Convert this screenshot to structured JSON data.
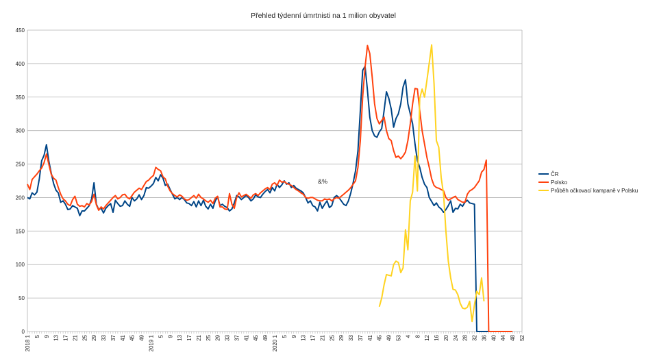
{
  "chart_data": {
    "type": "line",
    "title": "Přehled týdenní úmrtnisti na 1 milion obyvatel",
    "xlabel": "",
    "ylabel": "",
    "ylim": [
      0,
      450
    ],
    "yticks": [
      0,
      50,
      100,
      150,
      200,
      250,
      300,
      350,
      400,
      450
    ],
    "grid": true,
    "legend_position": "right",
    "annotation": "&%",
    "x_tick_labels": [
      "2018 1",
      "5",
      "9",
      "13",
      "17",
      "21",
      "25",
      "29",
      "33",
      "37",
      "41",
      "45",
      "49",
      "2019 1",
      "5",
      "9",
      "13",
      "17",
      "21",
      "25",
      "29",
      "33",
      "37",
      "41",
      "45",
      "49",
      "2020 1",
      "5",
      "9",
      "13",
      "17",
      "21",
      "25",
      "29",
      "33",
      "37",
      "41",
      "45",
      "49",
      "53",
      "4",
      "8",
      "12",
      "16",
      "20",
      "24",
      "28",
      "32",
      "36",
      "40",
      "44",
      "48",
      "52"
    ],
    "series": [
      {
        "name": "ČR",
        "color": "#004586",
        "values": [
          200,
          198,
          207,
          204,
          208,
          228,
          255,
          263,
          279,
          255,
          237,
          221,
          211,
          207,
          193,
          195,
          190,
          182,
          183,
          188,
          186,
          184,
          173,
          180,
          180,
          184,
          188,
          198,
          222,
          190,
          182,
          184,
          177,
          184,
          188,
          191,
          178,
          196,
          191,
          187,
          188,
          195,
          190,
          187,
          200,
          195,
          198,
          204,
          197,
          203,
          215,
          214,
          217,
          221,
          230,
          225,
          234,
          229,
          218,
          220,
          212,
          205,
          198,
          200,
          197,
          200,
          197,
          192,
          191,
          188,
          194,
          186,
          195,
          188,
          196,
          187,
          183,
          190,
          184,
          195,
          201,
          188,
          190,
          187,
          185,
          180,
          183,
          192,
          203,
          201,
          197,
          200,
          203,
          200,
          195,
          198,
          204,
          201,
          200,
          205,
          209,
          212,
          207,
          215,
          210,
          220,
          215,
          219,
          225,
          220,
          222,
          215,
          218,
          214,
          212,
          210,
          207,
          200,
          192,
          195,
          188,
          186,
          180,
          193,
          184,
          190,
          195,
          185,
          188,
          200,
          203,
          200,
          195,
          190,
          188,
          195,
          207,
          222,
          240,
          270,
          330,
          390,
          396,
          360,
          320,
          300,
          292,
          290,
          298,
          303,
          330,
          358,
          348,
          332,
          305,
          318,
          325,
          340,
          365,
          376,
          340,
          325,
          310,
          280,
          255,
          245,
          230,
          220,
          215,
          200,
          194,
          188,
          192,
          186,
          183,
          178,
          182,
          188,
          195,
          178,
          184,
          183,
          190,
          187,
          193,
          196,
          192,
          191,
          190,
          0,
          0,
          0,
          0,
          0,
          0,
          0,
          0,
          0,
          0,
          0
        ],
        "start_index": 0
      },
      {
        "name": "Polsko",
        "color": "#ff420e",
        "values": [
          220,
          212,
          227,
          231,
          235,
          240,
          244,
          252,
          265,
          250,
          235,
          229,
          226,
          215,
          205,
          198,
          195,
          190,
          188,
          197,
          202,
          190,
          187,
          188,
          186,
          191,
          189,
          194,
          205,
          189,
          181,
          186,
          183,
          188,
          192,
          196,
          200,
          203,
          198,
          200,
          204,
          205,
          200,
          198,
          203,
          208,
          211,
          214,
          212,
          218,
          224,
          226,
          230,
          233,
          245,
          242,
          240,
          231,
          228,
          217,
          210,
          206,
          203,
          201,
          204,
          202,
          198,
          196,
          197,
          200,
          203,
          199,
          205,
          200,
          198,
          195,
          193,
          196,
          191,
          199,
          202,
          186,
          186,
          183,
          182,
          206,
          190,
          184,
          200,
          207,
          201,
          203,
          205,
          202,
          199,
          204,
          206,
          203,
          207,
          210,
          213,
          215,
          212,
          220,
          222,
          218,
          226,
          223,
          224,
          221,
          220,
          218,
          215,
          212,
          210,
          207,
          205,
          200,
          199,
          200,
          200,
          198,
          196,
          195,
          195,
          198,
          197,
          198,
          195,
          198,
          200,
          199,
          202,
          205,
          208,
          211,
          215,
          220,
          225,
          245,
          285,
          350,
          395,
          427,
          415,
          380,
          340,
          318,
          310,
          315,
          320,
          300,
          288,
          285,
          270,
          260,
          262,
          258,
          262,
          268,
          285,
          310,
          340,
          363,
          362,
          330,
          300,
          280,
          260,
          245,
          228,
          218,
          215,
          214,
          212,
          210,
          200,
          196,
          198,
          200,
          202,
          197,
          195,
          193,
          193,
          205,
          210,
          212,
          215,
          220,
          225,
          238,
          242,
          256,
          0,
          0,
          0,
          0,
          0,
          0,
          0,
          0,
          0,
          0,
          0
        ],
        "start_index": 0
      },
      {
        "name": "Průběh očkovací kampaně v Polsku",
        "color": "#ffd320",
        "start_index": 148,
        "values": [
          37,
          50,
          70,
          85,
          84,
          83,
          100,
          105,
          103,
          88,
          95,
          152,
          122,
          195,
          208,
          262,
          210,
          348,
          362,
          350,
          375,
          401,
          428,
          370,
          285,
          275,
          230,
          205,
          150,
          105,
          80,
          63,
          62,
          55,
          42,
          35,
          34,
          36,
          45,
          15,
          40,
          60,
          55,
          80,
          45
        ]
      }
    ]
  }
}
